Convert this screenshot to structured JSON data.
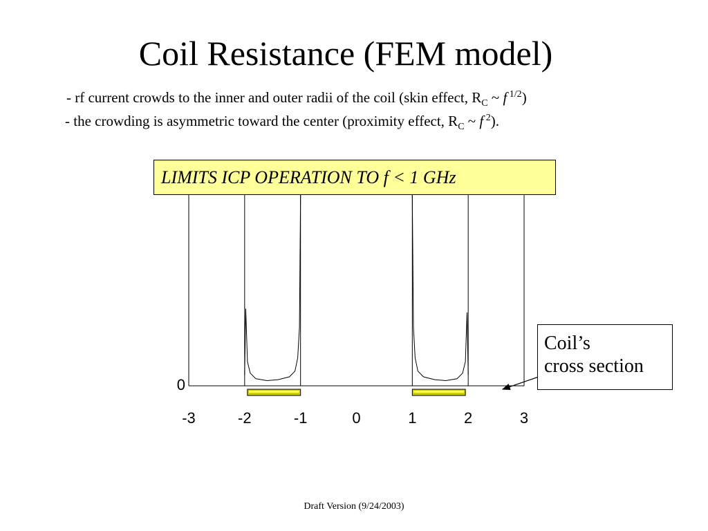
{
  "slide": {
    "title": "Coil Resistance (FEM model)",
    "bullet1": {
      "text": "- rf current crowds to the inner and outer radii of the coil (skin effect, R",
      "sub": "C",
      "tilde": " ~ ",
      "f": "f",
      "sup": " 1/2",
      "end": ")"
    },
    "bullet2": {
      "text": "- the crowding is asymmetric toward the center (proximity effect, R",
      "sub": "C",
      "tilde": " ~ ",
      "f": "f",
      "sup": " 2",
      "end": ")."
    },
    "callout": "LIMITS ICP OPERATION TO f < 1 GHz",
    "coil_label_line1": "Coil’s",
    "coil_label_line2": "cross section",
    "footer": "Draft Version (9/24/2003)"
  },
  "colors": {
    "callout_bg": "#ffff99",
    "coil_fill": "#cccc00",
    "coil_highlight": "#ffff66",
    "curve": "#000000"
  },
  "chart_data": {
    "type": "line",
    "title": "",
    "xlabel": "",
    "ylabel": "",
    "xlim": [
      -3,
      3
    ],
    "ylim": [
      0,
      1
    ],
    "x_ticks": [
      -3,
      -2,
      -1,
      0,
      1,
      2,
      3
    ],
    "y_ticks": [
      0
    ],
    "grid": "vertical lines at x = -2, -1, 1, 2",
    "series": [
      {
        "x": [
          -2.0,
          -1.98,
          -1.95,
          -1.9,
          -1.8,
          -1.6,
          -1.4,
          -1.2,
          -1.1,
          -1.05,
          -1.02,
          -1.0
        ],
        "y": [
          0.05,
          0.4,
          0.12,
          0.06,
          0.03,
          0.02,
          0.025,
          0.04,
          0.07,
          0.14,
          0.3,
          1.0
        ]
      },
      {
        "x": [
          1.0,
          1.02,
          1.05,
          1.1,
          1.2,
          1.4,
          1.6,
          1.8,
          1.9,
          1.95,
          1.98,
          2.0
        ],
        "y": [
          1.0,
          0.3,
          0.14,
          0.07,
          0.04,
          0.025,
          0.02,
          0.03,
          0.06,
          0.12,
          0.38,
          0.05
        ]
      }
    ],
    "coils": [
      {
        "x0": -1.95,
        "x1": -1.0
      },
      {
        "x0": 1.0,
        "x1": 1.95
      }
    ]
  }
}
